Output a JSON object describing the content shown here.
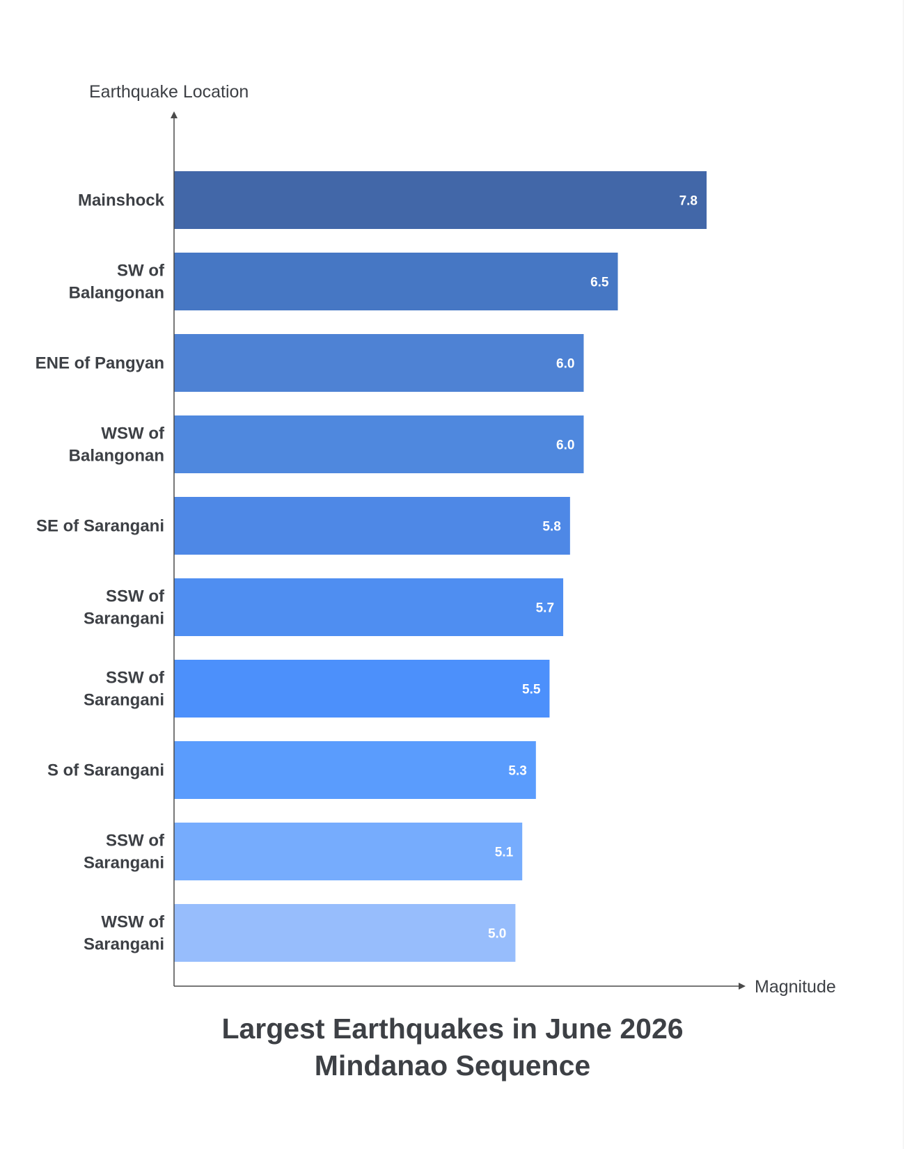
{
  "chart_data": {
    "type": "bar",
    "orientation": "horizontal",
    "title_lines": [
      "Largest Earthquakes in June 2026",
      "Mindanao Sequence"
    ],
    "xlabel": "Magnitude",
    "ylabel": "Earthquake Location",
    "xlim": [
      0,
      7.8
    ],
    "grid": false,
    "legend": "none",
    "categories": [
      [
        "Mainshock"
      ],
      [
        "SW of",
        "Balangonan"
      ],
      [
        "ENE of Pangyan"
      ],
      [
        "WSW of",
        "Balangonan"
      ],
      [
        "SE of Sarangani"
      ],
      [
        "SSW of",
        "Sarangani"
      ],
      [
        "SSW of",
        "Sarangani"
      ],
      [
        "S of Sarangani"
      ],
      [
        "SSW of",
        "Sarangani"
      ],
      [
        "WSW of",
        "Sarangani"
      ]
    ],
    "values": [
      7.8,
      6.5,
      6.0,
      6.0,
      5.8,
      5.7,
      5.5,
      5.3,
      5.1,
      5.0
    ],
    "value_labels": [
      "7.8",
      "6.5",
      "6.0",
      "6.0",
      "5.8",
      "5.7",
      "5.5",
      "5.3",
      "5.1",
      "5.0"
    ],
    "colors": [
      "#4267a8",
      "#4677c4",
      "#4e82d4",
      "#4f88de",
      "#4e88e6",
      "#4f8ef1",
      "#4c90fb",
      "#5a9cfd",
      "#76acfd",
      "#97bdfc"
    ],
    "label_color": "#3d4045",
    "value_label_color": "#ffffff",
    "axis_color": "#4a4a4a"
  }
}
